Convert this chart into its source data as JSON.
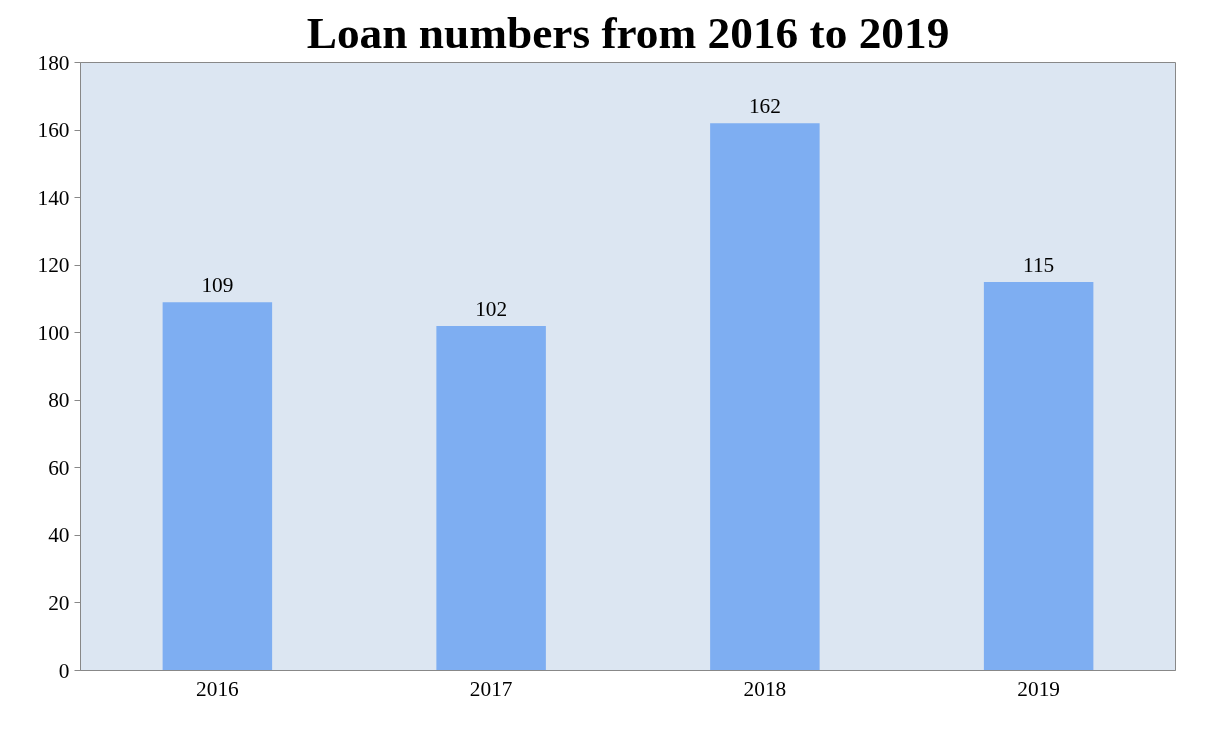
{
  "chart_data": {
    "type": "bar",
    "title": "Loan numbers from 2016 to 2019",
    "categories": [
      "2016",
      "2017",
      "2018",
      "2019"
    ],
    "values": [
      109,
      102,
      162,
      115
    ],
    "color": "#7eaef2",
    "ylim": [
      0,
      180
    ],
    "yticks": [
      0,
      20,
      40,
      60,
      80,
      100,
      120,
      140,
      160,
      180
    ],
    "data_labels": true,
    "grid": false
  }
}
